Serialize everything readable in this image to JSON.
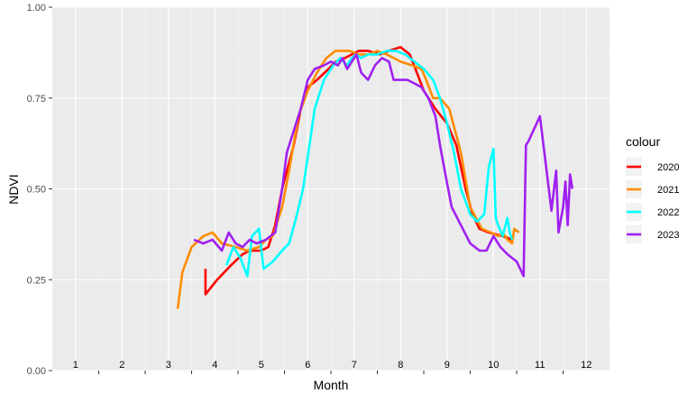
{
  "chart_data": {
    "type": "line",
    "title": "",
    "xlabel": "Month",
    "ylabel": "NDVI",
    "xlim": [
      0.5,
      12.5
    ],
    "ylim": [
      0,
      1
    ],
    "x_ticks": [
      1,
      2,
      3,
      4,
      5,
      6,
      7,
      8,
      9,
      10,
      11,
      12
    ],
    "y_ticks": [
      0,
      0.25,
      0.5,
      0.75,
      1
    ],
    "y_tick_labels": [
      "0.00",
      "0.25",
      "0.50",
      "0.75",
      "1.00"
    ],
    "grid": true,
    "legend": {
      "title": "colour",
      "placement": "right"
    },
    "series": [
      {
        "name": "2020",
        "color": "#ff0000",
        "x": [
          3.8,
          3.8,
          4.05,
          4.35,
          4.6,
          4.75,
          5.0,
          5.15,
          5.3,
          5.45,
          5.7,
          5.85,
          6.0,
          6.2,
          6.45,
          6.6,
          6.8,
          6.95,
          7.1,
          7.3,
          7.55,
          7.75,
          8.0,
          8.2,
          8.35,
          8.5,
          8.75,
          9.0,
          9.2,
          9.4,
          9.55,
          9.7,
          9.9,
          10.2,
          10.4
        ],
        "values": [
          0.28,
          0.21,
          0.25,
          0.29,
          0.32,
          0.33,
          0.33,
          0.34,
          0.4,
          0.5,
          0.62,
          0.72,
          0.78,
          0.8,
          0.83,
          0.85,
          0.86,
          0.87,
          0.88,
          0.88,
          0.87,
          0.88,
          0.89,
          0.87,
          0.82,
          0.77,
          0.72,
          0.68,
          0.62,
          0.5,
          0.43,
          0.39,
          0.38,
          0.37,
          0.36
        ]
      },
      {
        "name": "2021",
        "color": "#ff8c00",
        "x": [
          3.2,
          3.3,
          3.5,
          3.75,
          3.95,
          4.15,
          4.45,
          4.7,
          4.95,
          5.1,
          5.25,
          5.45,
          5.6,
          5.8,
          6.0,
          6.2,
          6.4,
          6.6,
          6.75,
          6.9,
          7.1,
          7.3,
          7.5,
          7.7,
          8.0,
          8.25,
          8.45,
          8.55,
          8.7,
          8.85,
          9.05,
          9.3,
          9.5,
          9.75,
          9.95,
          10.1,
          10.2,
          10.3,
          10.4,
          10.45,
          10.55
        ],
        "values": [
          0.17,
          0.27,
          0.34,
          0.37,
          0.38,
          0.35,
          0.34,
          0.33,
          0.34,
          0.36,
          0.37,
          0.45,
          0.55,
          0.7,
          0.77,
          0.82,
          0.86,
          0.88,
          0.88,
          0.88,
          0.87,
          0.87,
          0.88,
          0.87,
          0.85,
          0.84,
          0.83,
          0.8,
          0.75,
          0.75,
          0.72,
          0.6,
          0.45,
          0.39,
          0.38,
          0.37,
          0.38,
          0.36,
          0.35,
          0.39,
          0.38
        ]
      },
      {
        "name": "2022",
        "color": "#00ffff",
        "x": [
          4.25,
          4.4,
          4.55,
          4.7,
          4.8,
          4.95,
          5.05,
          5.25,
          5.45,
          5.6,
          5.75,
          5.9,
          6.05,
          6.15,
          6.25,
          6.35,
          6.45,
          6.55,
          6.7,
          6.85,
          6.95,
          7.05,
          7.15,
          7.3,
          7.5,
          7.7,
          7.9,
          8.1,
          8.3,
          8.5,
          8.7,
          8.85,
          9.0,
          9.15,
          9.3,
          9.5,
          9.65,
          9.8,
          9.9,
          10.0,
          10.05,
          10.1,
          10.2,
          10.3,
          10.35,
          10.4
        ],
        "values": [
          0.29,
          0.34,
          0.31,
          0.26,
          0.37,
          0.39,
          0.28,
          0.3,
          0.33,
          0.35,
          0.42,
          0.5,
          0.63,
          0.72,
          0.76,
          0.8,
          0.82,
          0.84,
          0.86,
          0.84,
          0.86,
          0.87,
          0.86,
          0.87,
          0.87,
          0.88,
          0.88,
          0.87,
          0.85,
          0.83,
          0.8,
          0.75,
          0.68,
          0.6,
          0.5,
          0.43,
          0.41,
          0.43,
          0.56,
          0.61,
          0.42,
          0.4,
          0.37,
          0.42,
          0.38,
          0.36
        ]
      },
      {
        "name": "2023",
        "color": "#a020f0",
        "x": [
          3.55,
          3.75,
          3.95,
          4.15,
          4.3,
          4.45,
          4.6,
          4.75,
          4.9,
          5.1,
          5.3,
          5.45,
          5.55,
          5.7,
          5.85,
          6.0,
          6.15,
          6.35,
          6.5,
          6.65,
          6.75,
          6.85,
          6.95,
          7.05,
          7.15,
          7.3,
          7.45,
          7.6,
          7.75,
          7.85,
          8.0,
          8.15,
          8.3,
          8.45,
          8.6,
          8.75,
          8.85,
          8.95,
          9.1,
          9.3,
          9.5,
          9.7,
          9.85,
          10.0,
          10.15,
          10.3,
          10.5,
          10.65,
          10.7,
          10.75,
          11.0,
          11.25,
          11.35,
          11.4,
          11.5,
          11.55,
          11.6,
          11.65,
          11.7
        ],
        "values": [
          0.36,
          0.35,
          0.36,
          0.33,
          0.38,
          0.35,
          0.34,
          0.36,
          0.35,
          0.36,
          0.38,
          0.5,
          0.6,
          0.66,
          0.72,
          0.8,
          0.83,
          0.84,
          0.85,
          0.84,
          0.86,
          0.83,
          0.85,
          0.87,
          0.82,
          0.8,
          0.84,
          0.86,
          0.85,
          0.8,
          0.8,
          0.8,
          0.79,
          0.78,
          0.75,
          0.7,
          0.62,
          0.55,
          0.45,
          0.4,
          0.35,
          0.33,
          0.33,
          0.37,
          0.34,
          0.32,
          0.3,
          0.26,
          0.62,
          0.63,
          0.7,
          0.44,
          0.55,
          0.38,
          0.45,
          0.52,
          0.4,
          0.54,
          0.5
        ]
      }
    ]
  }
}
